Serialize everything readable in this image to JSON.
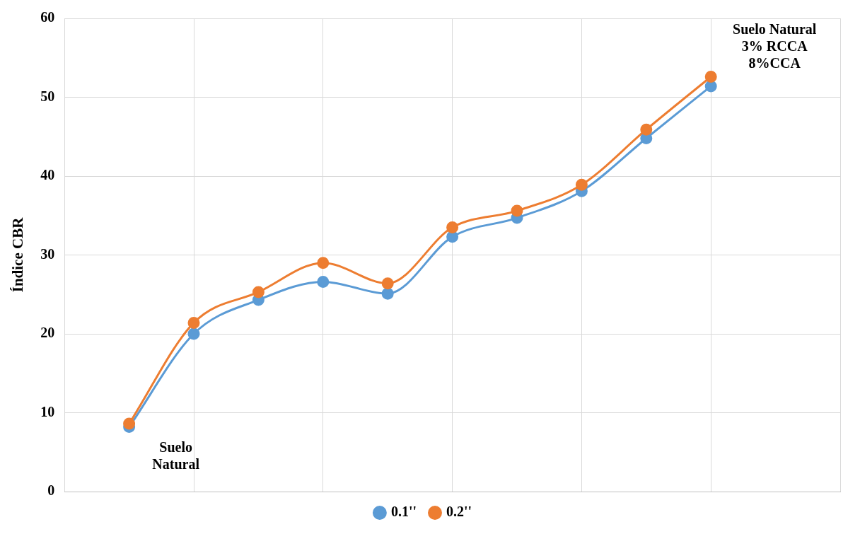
{
  "chart_data": {
    "type": "line",
    "ylabel": "Índice CBR",
    "categories": [
      null,
      null,
      null,
      null,
      null,
      null,
      null,
      null,
      null,
      null
    ],
    "series": [
      {
        "name": "0.1''",
        "color": "#5b9bd5",
        "values": [
          8.2,
          20.0,
          24.3,
          26.6,
          25.1,
          32.3,
          34.7,
          38.1,
          44.8,
          51.4
        ]
      },
      {
        "name": "0.2''",
        "color": "#ed7d31",
        "values": [
          8.6,
          21.4,
          25.3,
          29.0,
          26.4,
          33.5,
          35.6,
          38.9,
          45.9,
          52.6
        ]
      }
    ],
    "ylim": [
      0,
      60
    ],
    "yticks": [
      0,
      10,
      20,
      30,
      40,
      50,
      60
    ],
    "grid": true,
    "legend": "bottom",
    "marker": "circle",
    "annotations": [
      "Suelo\nNatural",
      "Suelo Natural\n3% RCCA\n8%CCA"
    ]
  }
}
